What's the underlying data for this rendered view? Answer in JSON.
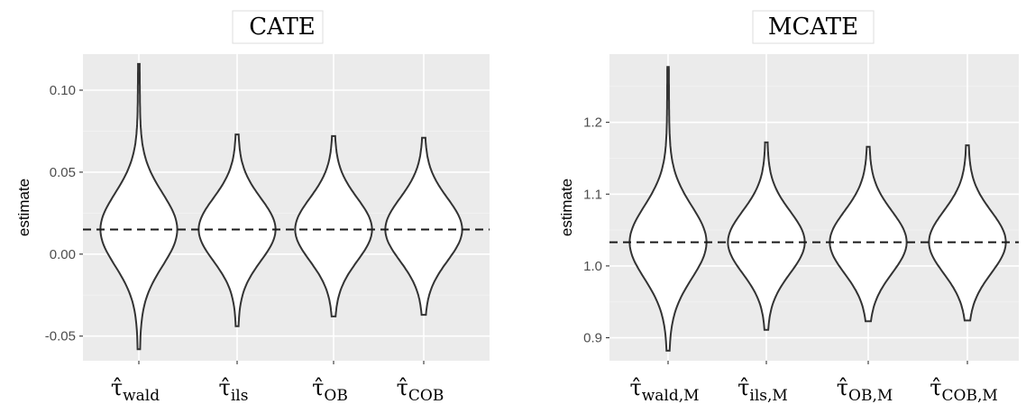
{
  "chart_data": [
    {
      "type": "violin",
      "title": "CATE",
      "ylabel": "estimate",
      "ylim": [
        -0.065,
        0.122
      ],
      "yticks": [
        -0.05,
        0.0,
        0.05,
        0.1
      ],
      "ytick_labels": [
        "-0.05",
        "0.00",
        "0.05",
        "0.10"
      ],
      "reference_line": 0.015,
      "grid": true,
      "categories": [
        {
          "base": "τ̂",
          "sub": "wald"
        },
        {
          "base": "τ̂",
          "sub": "ils"
        },
        {
          "base": "τ̂",
          "sub": "OB"
        },
        {
          "base": "τ̂",
          "sub": "COB"
        }
      ],
      "series": [
        {
          "min": -0.058,
          "max": 0.116,
          "center": 0.015,
          "spread": 0.022
        },
        {
          "min": -0.044,
          "max": 0.073,
          "center": 0.015,
          "spread": 0.019
        },
        {
          "min": -0.038,
          "max": 0.072,
          "center": 0.015,
          "spread": 0.019
        },
        {
          "min": -0.037,
          "max": 0.071,
          "center": 0.015,
          "spread": 0.019
        }
      ]
    },
    {
      "type": "violin",
      "title": "MCATE",
      "ylabel": "estimate",
      "ylim": [
        0.868,
        1.295
      ],
      "yticks": [
        0.9,
        1.0,
        1.1,
        1.2
      ],
      "ytick_labels": [
        "0.9",
        "1.0",
        "1.1",
        "1.2"
      ],
      "reference_line": 1.033,
      "grid": true,
      "categories": [
        {
          "base": "τ̂",
          "sub": "wald,M"
        },
        {
          "base": "τ̂",
          "sub": "ils,M"
        },
        {
          "base": "τ̂",
          "sub": "OB,M"
        },
        {
          "base": "τ̂",
          "sub": "COB,M"
        }
      ],
      "series": [
        {
          "min": 0.882,
          "max": 1.277,
          "center": 1.033,
          "spread": 0.05
        },
        {
          "min": 0.911,
          "max": 1.172,
          "center": 1.033,
          "spread": 0.043
        },
        {
          "min": 0.923,
          "max": 1.166,
          "center": 1.033,
          "spread": 0.043
        },
        {
          "min": 0.924,
          "max": 1.168,
          "center": 1.033,
          "spread": 0.043
        }
      ]
    }
  ]
}
